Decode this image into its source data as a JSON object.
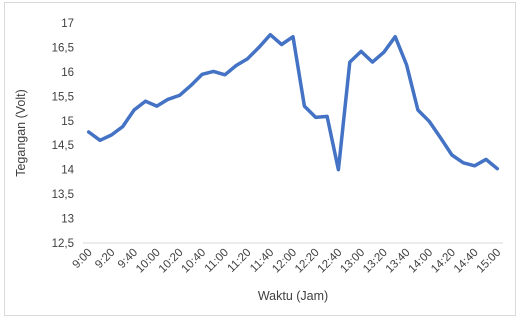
{
  "chart_data": {
    "type": "line",
    "title": "",
    "xlabel": "Waktu (Jam)",
    "ylabel": "Tegangan (Volt)",
    "ylim": [
      12.5,
      17
    ],
    "yticks": [
      12.5,
      13,
      13.5,
      14,
      14.5,
      15,
      15.5,
      16,
      16.5,
      17
    ],
    "ytick_labels": [
      "12,5",
      "13",
      "13,5",
      "14",
      "14,5",
      "15",
      "15,5",
      "16",
      "16,5",
      "17"
    ],
    "xtick_labels": [
      "9:00",
      "9:20",
      "9:40",
      "10:00",
      "10:20",
      "10:40",
      "11:00",
      "11:20",
      "11:40",
      "12:00",
      "12:20",
      "12:40",
      "13:00",
      "13:20",
      "13:40",
      "14:00",
      "14:20",
      "14:40",
      "15:00"
    ],
    "x": [
      "9:00",
      "9:10",
      "9:20",
      "9:30",
      "9:40",
      "9:50",
      "10:00",
      "10:10",
      "10:20",
      "10:30",
      "10:40",
      "10:50",
      "11:00",
      "11:10",
      "11:20",
      "11:30",
      "11:40",
      "11:50",
      "12:00",
      "12:10",
      "12:20",
      "12:30",
      "12:40",
      "12:50",
      "13:00",
      "13:10",
      "13:20",
      "13:30",
      "13:40",
      "13:50",
      "14:00",
      "14:10",
      "14:20",
      "14:30",
      "14:40",
      "14:50",
      "15:00"
    ],
    "series": [
      {
        "values": [
          14.77,
          14.6,
          14.71,
          14.88,
          15.22,
          15.4,
          15.3,
          15.44,
          15.52,
          15.72,
          15.95,
          16.01,
          15.94,
          16.13,
          16.27,
          16.5,
          16.76,
          16.56,
          16.72,
          15.3,
          15.07,
          15.09,
          14.0,
          16.2,
          16.42,
          16.2,
          16.4,
          16.72,
          16.15,
          15.22,
          14.99,
          14.65,
          14.3,
          14.14,
          14.08,
          14.21,
          14.02
        ],
        "color": "#4472c4"
      }
    ],
    "grid": false,
    "legend": "none"
  }
}
